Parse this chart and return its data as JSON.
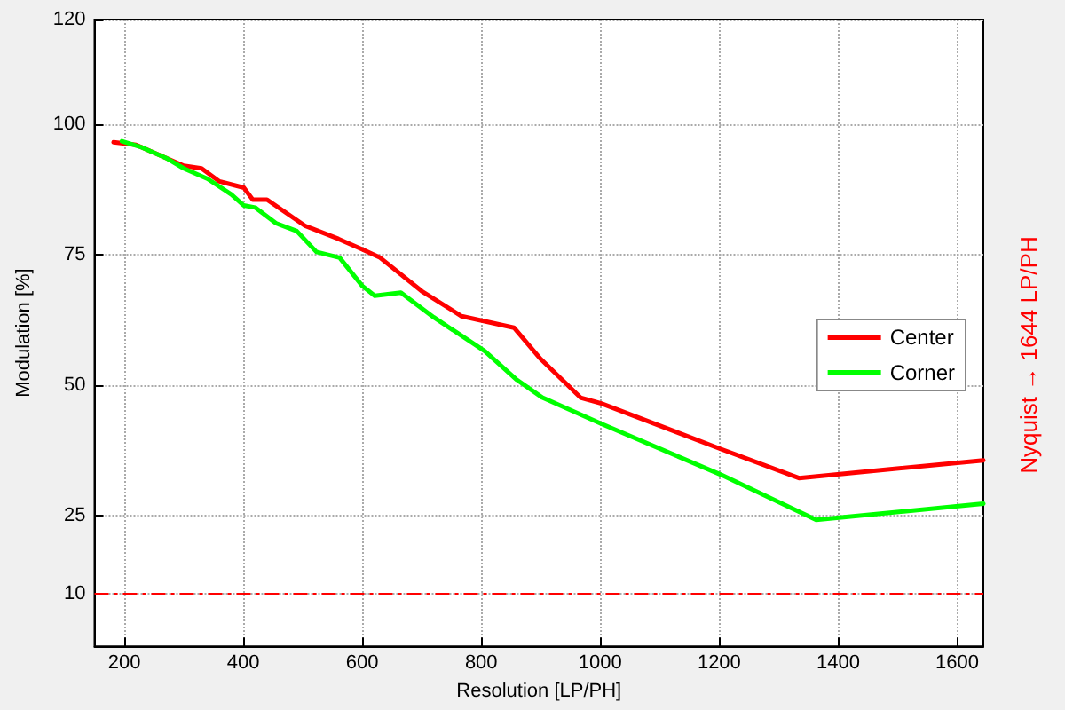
{
  "chart_data": {
    "type": "line",
    "xlabel": "Resolution [LP/PH]",
    "ylabel": "Modulation [%]",
    "xlim": [
      150,
      1644
    ],
    "xticks": [
      200,
      400,
      600,
      800,
      1000,
      1200,
      1400,
      1600
    ],
    "ylim": [
      0,
      120
    ],
    "yticks": [
      10,
      25,
      50,
      75,
      100,
      120
    ],
    "grid": true,
    "legend": "right",
    "marker": "none",
    "line_style": "solid",
    "series": [
      {
        "name": "Center",
        "color": "#ff0000",
        "x": [
          182,
          220,
          260,
          300,
          330,
          360,
          401,
          416,
          440,
          504,
          560,
          600,
          630,
          700,
          767,
          855,
          900,
          967,
          1002,
          1202,
          1334,
          1644
        ],
        "values": [
          96.5,
          96,
          94,
          92,
          91.5,
          89,
          87.8,
          85.5,
          85.5,
          80.5,
          78,
          76,
          74.4,
          68,
          63.2,
          61,
          55,
          47.6,
          46.5,
          37.8,
          32.2,
          35.6
        ]
      },
      {
        "name": "Corner",
        "color": "#00ff00",
        "x": [
          196,
          230,
          270,
          300,
          340,
          380,
          401,
          420,
          455,
          490,
          523,
          562,
          600,
          621,
          665,
          720,
          806,
          860,
          903,
          1002,
          1202,
          1363,
          1644
        ],
        "values": [
          96.7,
          95.5,
          93.5,
          91.5,
          89.5,
          86.5,
          84.4,
          84,
          81,
          79.5,
          75.5,
          74.4,
          69,
          67.1,
          67.7,
          63,
          56.5,
          51,
          47.6,
          42.6,
          32.9,
          24.2,
          27.3
        ]
      }
    ],
    "ref_lines": [
      {
        "axis": "y",
        "value": 10,
        "color": "#ff0000",
        "line_style": "dashed"
      }
    ],
    "annotations": [
      "Nyquist → 1644 LP/PH"
    ]
  }
}
